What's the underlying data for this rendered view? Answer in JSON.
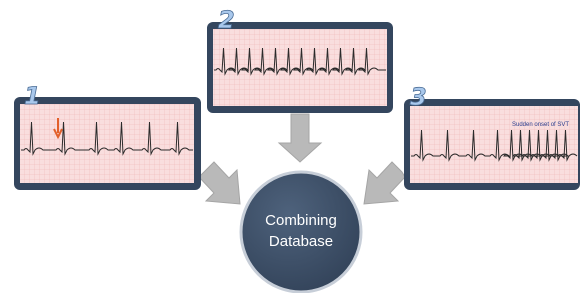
{
  "panels": [
    {
      "label": "1"
    },
    {
      "label": "2"
    },
    {
      "label": "3",
      "annotation": "Sudden onset of SVT"
    }
  ],
  "center": {
    "lines": [
      "Combining",
      "Database"
    ]
  }
}
